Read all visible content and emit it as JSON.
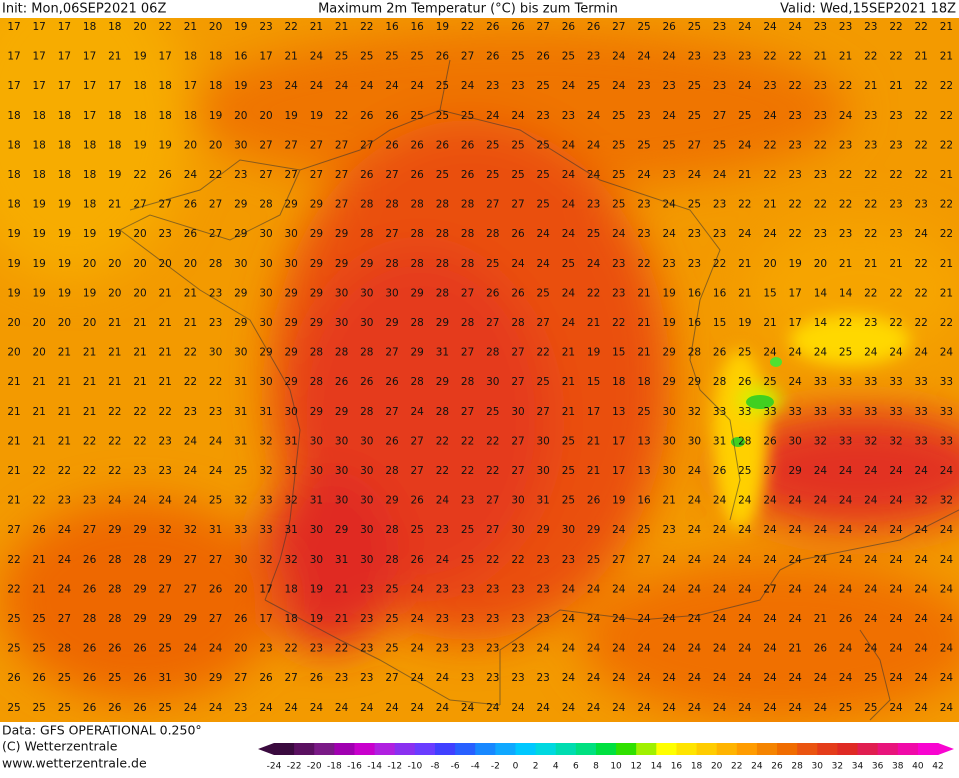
{
  "header": {
    "init": "Init: Mon,06SEP2021 06Z",
    "title": "Maximum 2m Temperatur (°C) bis zum Termin",
    "valid": "Valid: Wed,15SEP2021 18Z"
  },
  "map": {
    "rows": [
      [
        17,
        17,
        17,
        18,
        18,
        20,
        22,
        21,
        20,
        19,
        23,
        22,
        21,
        21,
        22,
        16,
        16,
        19,
        22,
        26,
        26,
        27,
        26,
        26,
        27,
        25,
        26,
        25,
        23,
        24,
        24,
        24,
        23,
        23,
        23,
        22,
        22,
        21
      ],
      [
        17,
        17,
        17,
        17,
        21,
        19,
        17,
        18,
        18,
        16,
        17,
        21,
        24,
        25,
        25,
        25,
        25,
        26,
        27,
        26,
        25,
        26,
        25,
        23,
        24,
        24,
        24,
        23,
        23,
        23,
        22,
        22,
        21,
        21,
        22,
        22,
        21,
        21
      ],
      [
        17,
        17,
        17,
        17,
        17,
        18,
        18,
        17,
        18,
        19,
        23,
        24,
        24,
        24,
        24,
        24,
        24,
        25,
        24,
        23,
        23,
        25,
        24,
        25,
        24,
        23,
        23,
        25,
        23,
        24,
        23,
        22,
        23,
        22,
        21,
        21,
        22,
        22
      ],
      [
        18,
        18,
        18,
        17,
        18,
        18,
        18,
        18,
        19,
        20,
        20,
        19,
        19,
        22,
        26,
        26,
        25,
        25,
        25,
        24,
        24,
        23,
        23,
        24,
        25,
        23,
        24,
        25,
        27,
        25,
        24,
        23,
        23,
        24,
        23,
        23,
        22,
        22
      ],
      [
        18,
        18,
        18,
        18,
        18,
        19,
        19,
        20,
        20,
        30,
        27,
        27,
        27,
        27,
        27,
        26,
        26,
        26,
        26,
        25,
        25,
        25,
        24,
        24,
        25,
        25,
        25,
        27,
        25,
        24,
        22,
        23,
        22,
        23,
        23,
        23,
        22,
        22
      ],
      [
        18,
        18,
        18,
        18,
        19,
        22,
        26,
        24,
        22,
        23,
        27,
        27,
        27,
        27,
        26,
        27,
        26,
        25,
        26,
        25,
        25,
        25,
        24,
        24,
        25,
        24,
        23,
        24,
        24,
        21,
        22,
        23,
        23,
        22,
        22,
        22,
        22,
        21
      ],
      [
        18,
        19,
        19,
        18,
        21,
        27,
        27,
        26,
        27,
        29,
        28,
        29,
        29,
        27,
        28,
        28,
        28,
        28,
        28,
        27,
        27,
        25,
        24,
        23,
        25,
        23,
        24,
        25,
        23,
        22,
        21,
        22,
        22,
        22,
        22,
        23,
        23,
        22
      ],
      [
        19,
        19,
        19,
        19,
        19,
        20,
        23,
        26,
        27,
        29,
        30,
        30,
        29,
        29,
        28,
        27,
        28,
        28,
        28,
        28,
        26,
        24,
        24,
        25,
        24,
        23,
        24,
        23,
        23,
        24,
        24,
        22,
        23,
        23,
        22,
        23,
        24,
        22
      ],
      [
        19,
        19,
        19,
        20,
        20,
        20,
        20,
        20,
        28,
        30,
        30,
        30,
        29,
        29,
        29,
        28,
        28,
        28,
        28,
        25,
        24,
        24,
        25,
        24,
        23,
        22,
        23,
        23,
        22,
        21,
        20,
        19,
        20,
        21,
        21,
        21,
        22,
        21
      ],
      [
        19,
        19,
        19,
        19,
        20,
        20,
        21,
        21,
        23,
        29,
        30,
        29,
        29,
        30,
        30,
        30,
        29,
        28,
        27,
        26,
        26,
        25,
        24,
        22,
        23,
        21,
        19,
        16,
        16,
        21,
        15,
        17,
        14,
        14,
        22,
        22,
        22,
        21
      ],
      [
        20,
        20,
        20,
        20,
        21,
        21,
        21,
        21,
        23,
        29,
        30,
        29,
        29,
        30,
        30,
        29,
        28,
        29,
        28,
        27,
        28,
        27,
        24,
        21,
        22,
        21,
        19,
        16,
        15,
        19,
        21,
        17,
        14,
        22,
        23,
        22,
        22,
        22
      ],
      [
        20,
        20,
        21,
        21,
        21,
        21,
        21,
        22,
        30,
        30,
        29,
        29,
        28,
        28,
        28,
        27,
        29,
        31,
        27,
        28,
        27,
        22,
        21,
        19,
        15,
        21,
        29,
        28,
        26,
        25,
        24,
        24,
        24,
        25,
        24,
        24,
        24,
        24
      ],
      [
        21,
        21,
        21,
        21,
        21,
        21,
        21,
        22,
        22,
        31,
        30,
        29,
        28,
        26,
        26,
        26,
        28,
        29,
        28,
        30,
        27,
        25,
        21,
        15,
        18,
        18,
        29,
        29,
        28,
        26,
        25,
        24,
        33,
        33,
        33,
        33,
        33,
        33
      ],
      [
        21,
        21,
        21,
        21,
        22,
        22,
        22,
        23,
        23,
        31,
        31,
        30,
        29,
        29,
        28,
        27,
        24,
        28,
        27,
        25,
        30,
        27,
        21,
        17,
        13,
        25,
        30,
        32,
        33,
        33,
        33,
        33,
        33,
        33,
        33,
        33,
        33,
        33
      ],
      [
        21,
        21,
        21,
        22,
        22,
        22,
        23,
        24,
        24,
        31,
        32,
        31,
        30,
        30,
        30,
        26,
        27,
        22,
        22,
        22,
        27,
        30,
        25,
        21,
        17,
        13,
        30,
        30,
        31,
        28,
        26,
        30,
        32,
        33,
        32,
        32,
        33,
        33
      ],
      [
        21,
        22,
        22,
        22,
        22,
        23,
        23,
        24,
        24,
        25,
        32,
        31,
        30,
        30,
        30,
        28,
        27,
        22,
        22,
        22,
        27,
        30,
        25,
        21,
        17,
        13,
        30,
        24,
        26,
        25,
        27,
        29,
        24,
        24,
        24,
        24,
        24,
        24
      ],
      [
        21,
        22,
        23,
        23,
        24,
        24,
        24,
        24,
        25,
        32,
        33,
        32,
        31,
        30,
        30,
        29,
        26,
        24,
        23,
        27,
        30,
        31,
        25,
        26,
        19,
        16,
        21,
        24,
        24,
        24,
        24,
        24,
        24,
        24,
        24,
        24,
        32,
        32
      ],
      [
        27,
        26,
        24,
        27,
        29,
        29,
        32,
        32,
        31,
        33,
        33,
        31,
        30,
        29,
        30,
        28,
        25,
        23,
        25,
        27,
        30,
        29,
        30,
        29,
        24,
        25,
        23,
        24,
        24,
        24,
        24,
        24,
        24,
        24,
        24,
        24,
        24,
        24
      ],
      [
        22,
        21,
        24,
        26,
        28,
        28,
        29,
        27,
        27,
        30,
        32,
        32,
        30,
        31,
        30,
        28,
        26,
        24,
        25,
        22,
        22,
        23,
        23,
        25,
        27,
        27,
        24,
        24,
        24,
        24,
        24,
        24,
        24,
        24,
        24,
        24,
        24,
        24
      ],
      [
        22,
        21,
        24,
        26,
        28,
        29,
        27,
        27,
        26,
        20,
        17,
        18,
        19,
        21,
        23,
        25,
        24,
        23,
        23,
        23,
        23,
        23,
        24,
        24,
        24,
        24,
        24,
        24,
        24,
        24,
        27,
        24,
        24,
        24,
        24,
        24,
        24,
        24
      ],
      [
        25,
        25,
        27,
        28,
        28,
        29,
        29,
        29,
        27,
        26,
        17,
        18,
        19,
        21,
        23,
        25,
        24,
        23,
        23,
        23,
        23,
        23,
        24,
        24,
        24,
        24,
        24,
        24,
        24,
        24,
        24,
        24,
        21,
        26,
        24,
        24,
        24,
        24
      ],
      [
        25,
        25,
        28,
        26,
        26,
        26,
        25,
        24,
        24,
        20,
        23,
        22,
        23,
        22,
        23,
        25,
        24,
        23,
        23,
        23,
        23,
        24,
        24,
        24,
        24,
        24,
        24,
        24,
        24,
        24,
        24,
        21,
        26,
        24,
        24,
        24,
        24,
        24
      ],
      [
        26,
        26,
        25,
        26,
        25,
        26,
        31,
        30,
        29,
        27,
        26,
        27,
        26,
        23,
        23,
        27,
        24,
        24,
        23,
        23,
        23,
        23,
        24,
        24,
        24,
        24,
        24,
        24,
        24,
        24,
        24,
        24,
        24,
        24,
        25,
        24,
        24,
        24
      ],
      [
        25,
        25,
        25,
        26,
        26,
        26,
        25,
        24,
        24,
        23,
        24,
        24,
        24,
        24,
        24,
        24,
        24,
        24,
        24,
        24,
        24,
        24,
        24,
        24,
        24,
        24,
        24,
        24,
        24,
        24,
        24,
        24,
        24,
        25,
        25,
        24,
        24,
        24
      ]
    ]
  },
  "footer": {
    "source": "Data: GFS OPERATIONAL 0.250°",
    "copyright": "(C) Wetterzentrale",
    "url": "www.wetterzentrale.de"
  },
  "colorbar": {
    "ticks": [
      -24,
      -22,
      -20,
      -18,
      -16,
      -14,
      -12,
      -10,
      -8,
      -6,
      -4,
      -2,
      0,
      2,
      4,
      6,
      8,
      10,
      12,
      14,
      16,
      18,
      20,
      22,
      24,
      26,
      28,
      30,
      32,
      34,
      36,
      38,
      40,
      42
    ],
    "colors": [
      "#3a0a3e",
      "#5a1060",
      "#7a1a86",
      "#a000b0",
      "#c800cc",
      "#b020e0",
      "#8a30f0",
      "#6a3cff",
      "#4040ff",
      "#2860ff",
      "#1888ff",
      "#10a8ff",
      "#00c8ff",
      "#00d8e0",
      "#00dcb0",
      "#00e080",
      "#00e040",
      "#30e000",
      "#a0f000",
      "#ffff00",
      "#ffe400",
      "#ffcc00",
      "#ffb400",
      "#ff9c00",
      "#f58400",
      "#f06c00",
      "#ea5410",
      "#e43c1a",
      "#df2a24",
      "#e01e50",
      "#e8147c",
      "#f00aa8",
      "#f804d0"
    ]
  }
}
